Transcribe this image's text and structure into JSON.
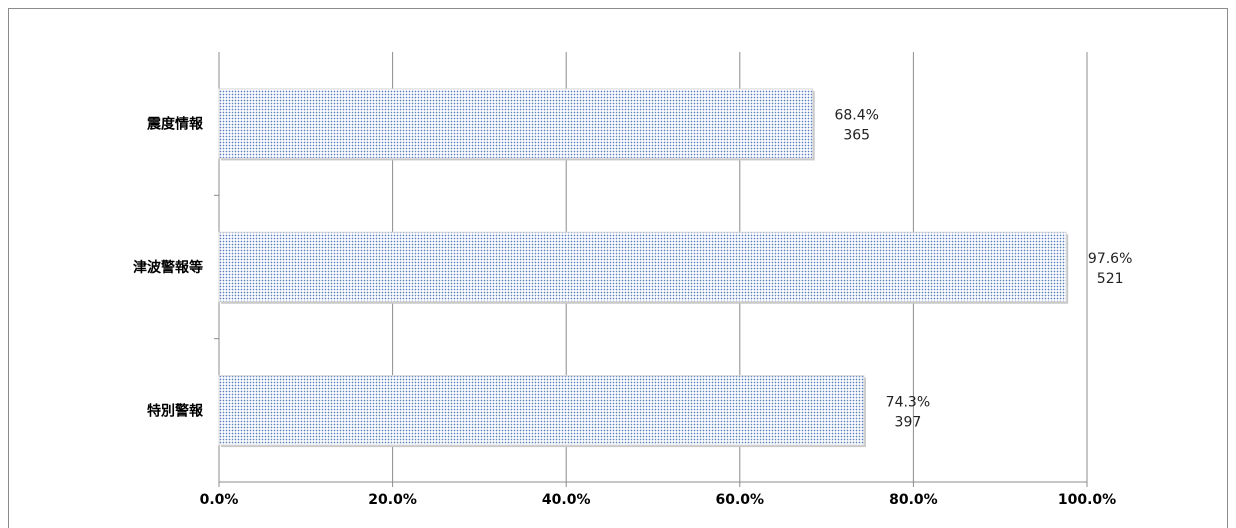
{
  "chart_data": {
    "type": "bar",
    "orientation": "horizontal",
    "categories": [
      "震度情報",
      "津波警報等",
      "特別警報"
    ],
    "values": [
      68.4,
      97.6,
      74.3
    ],
    "counts": [
      365,
      521,
      397
    ],
    "value_labels": [
      "68.4%",
      "97.6%",
      "74.3%"
    ],
    "count_labels": [
      "365",
      "521",
      "397"
    ],
    "x_ticks": [
      "0.0%",
      "20.0%",
      "40.0%",
      "60.0%",
      "80.0%",
      "100.0%"
    ],
    "xlim": [
      0,
      100
    ],
    "grid": true,
    "legend": "none",
    "bar_color": "#5b7fc0",
    "bar_pattern": "dotted"
  }
}
